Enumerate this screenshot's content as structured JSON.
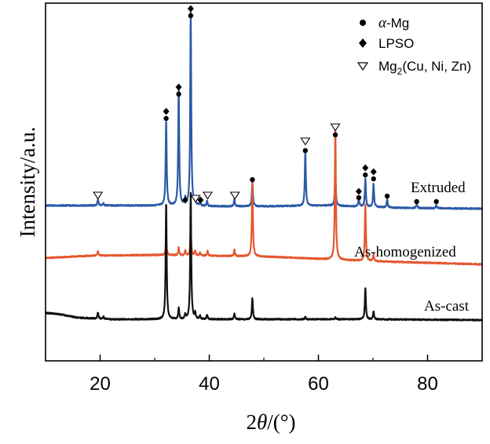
{
  "chart_data": {
    "type": "line",
    "xlabel_prefix": "2",
    "xlabel_symbol": "θ",
    "xlabel_suffix": "/(°)",
    "ylabel": "Intensity/a.u.",
    "xlim": [
      10,
      90
    ],
    "x_ticks": [
      "20",
      "40",
      "60",
      "80"
    ],
    "y_ticks": [],
    "grid": false,
    "legend": {
      "placement": "top-right",
      "entries": [
        {
          "marker": "circle",
          "symbol": "α",
          "text": "-Mg"
        },
        {
          "marker": "diamond",
          "text": "LPSO"
        },
        {
          "marker": "triangle-down-open",
          "text": "Mg",
          "subscript": "2",
          "suffix": "(Cu, Ni, Zn)"
        }
      ]
    },
    "series": [
      {
        "name": "Extruded",
        "color": "#2a5aa6",
        "baseline": 262,
        "background": [
          [
            10,
            262
          ],
          [
            35,
            262
          ],
          [
            40,
            263
          ],
          [
            50,
            263
          ],
          [
            62,
            262
          ],
          [
            75,
            265
          ],
          [
            90,
            266
          ]
        ],
        "peaks": [
          {
            "x": 19.6,
            "h": 8
          },
          {
            "x": 20.6,
            "h": 3
          },
          {
            "x": 32.1,
            "h": 110
          },
          {
            "x": 34.4,
            "h": 150
          },
          {
            "x": 35.6,
            "h": 8
          },
          {
            "x": 36.6,
            "h": 246
          },
          {
            "x": 37.4,
            "h": 7
          },
          {
            "x": 38.3,
            "h": 5
          },
          {
            "x": 39.6,
            "h": 6
          },
          {
            "x": 44.6,
            "h": 9
          },
          {
            "x": 47.9,
            "h": 32
          },
          {
            "x": 57.6,
            "h": 70
          },
          {
            "x": 63.1,
            "h": 38
          },
          {
            "x": 67.4,
            "h": 11
          },
          {
            "x": 68.6,
            "h": 35
          },
          {
            "x": 70.1,
            "h": 30
          },
          {
            "x": 72.6,
            "h": 10
          },
          {
            "x": 78.0,
            "h": 5
          },
          {
            "x": 81.6,
            "h": 4
          }
        ]
      },
      {
        "name": "As-homogenized",
        "color": "#e4572e",
        "baseline": 326,
        "background": [
          [
            10,
            329
          ],
          [
            18,
            326
          ],
          [
            30,
            325
          ],
          [
            50,
            327
          ],
          [
            70,
            333
          ],
          [
            90,
            337
          ]
        ],
        "peaks": [
          {
            "x": 19.6,
            "h": 6
          },
          {
            "x": 32.1,
            "h": 20
          },
          {
            "x": 34.4,
            "h": 10
          },
          {
            "x": 35.6,
            "h": 6
          },
          {
            "x": 36.6,
            "h": 30
          },
          {
            "x": 37.4,
            "h": 6
          },
          {
            "x": 38.3,
            "h": 4
          },
          {
            "x": 39.7,
            "h": 6
          },
          {
            "x": 44.6,
            "h": 8
          },
          {
            "x": 47.9,
            "h": 96
          },
          {
            "x": 63.1,
            "h": 170
          },
          {
            "x": 68.6,
            "h": 72
          },
          {
            "x": 70.1,
            "h": 8
          }
        ]
      },
      {
        "name": "As-cast",
        "color": "#111111",
        "baseline": 407,
        "background": [
          [
            10,
            399
          ],
          [
            12,
            400
          ],
          [
            16,
            405
          ],
          [
            22,
            407
          ],
          [
            40,
            407
          ],
          [
            70,
            407
          ],
          [
            90,
            408
          ]
        ],
        "peaks": [
          {
            "x": 19.6,
            "h": 8
          },
          {
            "x": 20.6,
            "h": 3
          },
          {
            "x": 32.1,
            "h": 150
          },
          {
            "x": 34.4,
            "h": 14
          },
          {
            "x": 35.6,
            "h": 6
          },
          {
            "x": 36.6,
            "h": 160
          },
          {
            "x": 37.4,
            "h": 8
          },
          {
            "x": 38.3,
            "h": 4
          },
          {
            "x": 39.6,
            "h": 6
          },
          {
            "x": 44.6,
            "h": 7
          },
          {
            "x": 47.9,
            "h": 27
          },
          {
            "x": 57.6,
            "h": 3
          },
          {
            "x": 63.1,
            "h": 3
          },
          {
            "x": 68.6,
            "h": 40
          },
          {
            "x": 70.1,
            "h": 10
          }
        ]
      }
    ],
    "annotations": [
      {
        "marker": "triangle-down-open",
        "x": 19.6,
        "y": 249
      },
      {
        "marker": "circle",
        "x": 32.1,
        "y": 151
      },
      {
        "marker": "diamond",
        "x": 32.1,
        "y": 142
      },
      {
        "marker": "circle",
        "x": 34.4,
        "y": 120
      },
      {
        "marker": "diamond",
        "x": 34.4,
        "y": 111
      },
      {
        "marker": "diamond",
        "x": 35.6,
        "y": 255
      },
      {
        "marker": "circle",
        "x": 36.6,
        "y": 20
      },
      {
        "marker": "diamond",
        "x": 36.6,
        "y": 11
      },
      {
        "marker": "triangle-down-open",
        "x": 37.5,
        "y": 253
      },
      {
        "marker": "diamond",
        "x": 38.4,
        "y": 255
      },
      {
        "marker": "triangle-down-open",
        "x": 39.7,
        "y": 249
      },
      {
        "marker": "triangle-down-open",
        "x": 44.7,
        "y": 249
      },
      {
        "marker": "circle",
        "x": 47.9,
        "y": 229
      },
      {
        "marker": "triangle-down-open",
        "x": 57.6,
        "y": 180
      },
      {
        "marker": "circle",
        "x": 57.6,
        "y": 192
      },
      {
        "marker": "triangle-down-open",
        "x": 63.1,
        "y": 162
      },
      {
        "marker": "circle",
        "x": 63.1,
        "y": 172
      },
      {
        "marker": "diamond",
        "x": 67.4,
        "y": 244
      },
      {
        "marker": "circle",
        "x": 67.4,
        "y": 252
      },
      {
        "marker": "diamond",
        "x": 68.6,
        "y": 214
      },
      {
        "marker": "circle",
        "x": 68.6,
        "y": 223
      },
      {
        "marker": "diamond",
        "x": 70.1,
        "y": 219
      },
      {
        "marker": "circle",
        "x": 70.1,
        "y": 228
      },
      {
        "marker": "circle",
        "x": 72.6,
        "y": 250
      },
      {
        "marker": "circle",
        "x": 78.0,
        "y": 257
      },
      {
        "marker": "circle",
        "x": 81.6,
        "y": 257
      }
    ]
  }
}
